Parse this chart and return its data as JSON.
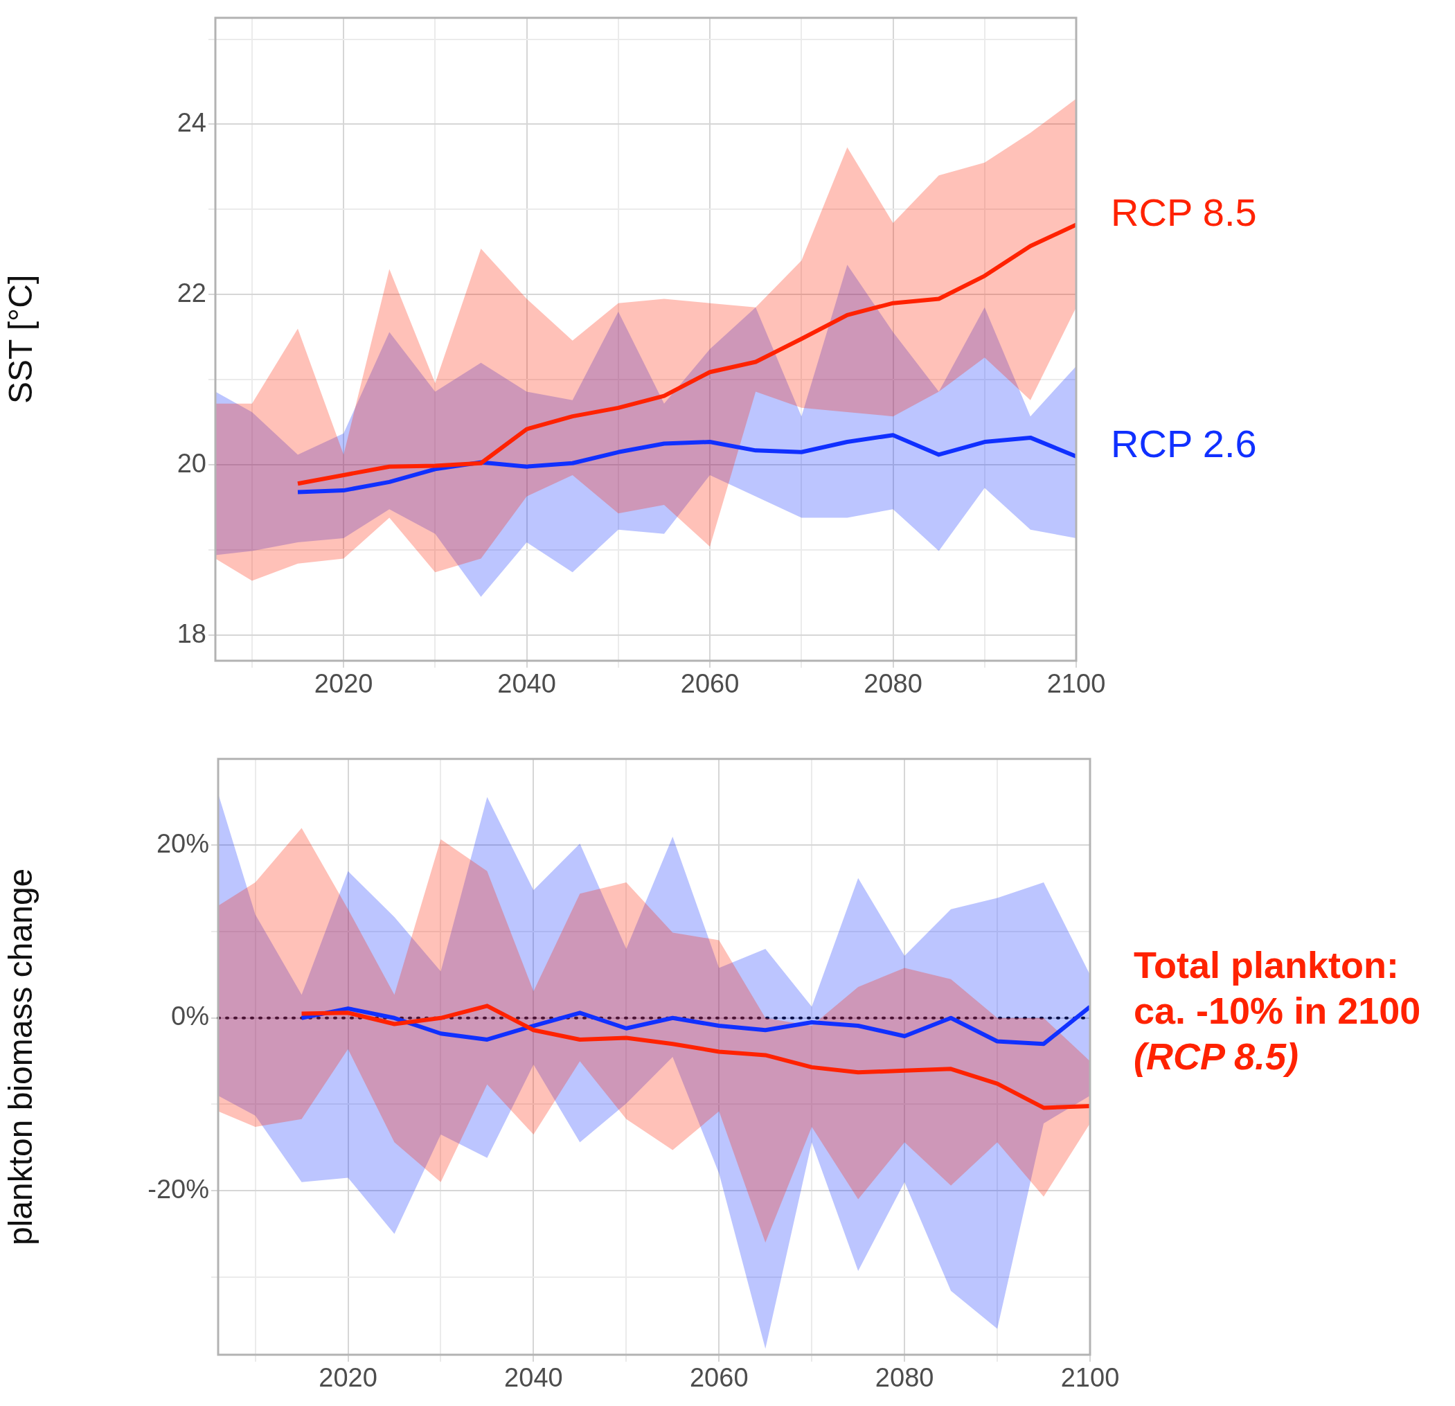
{
  "chart_data": [
    {
      "type": "line",
      "ylabel": "SST [°C]",
      "x": [
        2006,
        2010,
        2015,
        2020,
        2025,
        2030,
        2035,
        2040,
        2045,
        2050,
        2055,
        2060,
        2065,
        2070,
        2075,
        2080,
        2085,
        2090,
        2095,
        2100
      ],
      "xlim": [
        2006,
        2100
      ],
      "xticks": [
        {
          "value": 2010,
          "label": null
        },
        2020,
        {
          "value": 2030,
          "label": null
        },
        2040,
        {
          "value": 2050,
          "label": null
        },
        2060,
        {
          "value": 2070,
          "label": null
        },
        2080,
        {
          "value": 2090,
          "label": null
        },
        2100
      ],
      "ylim": [
        17.7,
        25.25
      ],
      "yticks": [
        18,
        {
          "value": 19,
          "label": null
        },
        20,
        {
          "value": 21,
          "label": null
        },
        22,
        {
          "value": 23,
          "label": null
        },
        24,
        {
          "value": 25,
          "label": null
        }
      ],
      "grid": true,
      "series": [
        {
          "name": "RCP 8.5",
          "color": "#ff2200",
          "values": [
            null,
            null,
            19.78,
            19.88,
            19.98,
            19.99,
            20.02,
            20.42,
            20.57,
            20.67,
            20.81,
            21.09,
            21.21,
            21.48,
            21.76,
            21.9,
            21.95,
            22.22,
            22.57,
            22.82
          ],
          "lower": [
            18.9,
            18.64,
            18.84,
            18.9,
            19.38,
            18.74,
            18.9,
            19.63,
            19.88,
            19.43,
            19.53,
            19.04,
            20.86,
            20.67,
            20.62,
            20.57,
            20.86,
            21.26,
            20.76,
            21.85
          ],
          "upper": [
            20.72,
            20.72,
            21.6,
            20.12,
            22.3,
            20.96,
            22.54,
            21.95,
            21.46,
            21.9,
            21.95,
            21.9,
            21.85,
            22.4,
            23.73,
            22.84,
            23.4,
            23.55,
            23.9,
            24.3
          ]
        },
        {
          "name": "RCP 2.6",
          "color": "#1030ff",
          "values": [
            null,
            null,
            19.68,
            19.7,
            19.8,
            19.95,
            20.03,
            19.98,
            20.02,
            20.15,
            20.25,
            20.27,
            20.17,
            20.15,
            20.27,
            20.35,
            20.12,
            20.27,
            20.32,
            20.1
          ],
          "lower": [
            18.94,
            18.99,
            19.09,
            19.14,
            19.48,
            19.19,
            18.45,
            19.09,
            18.74,
            19.24,
            19.19,
            19.88,
            19.63,
            19.38,
            19.38,
            19.48,
            18.99,
            19.73,
            19.24,
            19.14
          ],
          "upper": [
            20.86,
            20.62,
            20.12,
            20.37,
            21.56,
            20.86,
            21.2,
            20.86,
            20.76,
            21.8,
            20.72,
            21.36,
            21.85,
            20.57,
            22.35,
            21.56,
            20.86,
            21.85,
            20.57,
            21.16
          ]
        }
      ]
    },
    {
      "type": "line",
      "ylabel": "plankton biomass change",
      "x": [
        2006,
        2010,
        2015,
        2020,
        2025,
        2030,
        2035,
        2040,
        2045,
        2050,
        2055,
        2060,
        2065,
        2070,
        2075,
        2080,
        2085,
        2090,
        2095,
        2100
      ],
      "xlim": [
        2006,
        2100
      ],
      "xticks": [
        {
          "value": 2010,
          "label": null
        },
        2020,
        {
          "value": 2030,
          "label": null
        },
        2040,
        {
          "value": 2050,
          "label": null
        },
        2060,
        {
          "value": 2070,
          "label": null
        },
        2080,
        {
          "value": 2090,
          "label": null
        },
        2100
      ],
      "ylim": [
        -39,
        30
      ],
      "yticks": [
        {
          "value": -30,
          "label": null
        },
        {
          "value": -20,
          "label": "-20%"
        },
        {
          "value": -10,
          "label": null
        },
        {
          "value": 0,
          "label": "0%"
        },
        {
          "value": 10,
          "label": null
        },
        {
          "value": 20,
          "label": "20%"
        }
      ],
      "grid": true,
      "ref_lines": [
        {
          "axis": "y",
          "value": 0,
          "color": "#000000",
          "line_style": "dotted"
        }
      ],
      "annotations": [
        "Total plankton: ca. -10% in 2100",
        "(RCP 8.5)"
      ],
      "series": [
        {
          "color": "#ff2200",
          "values": [
            null,
            null,
            0.5,
            0.6,
            -0.7,
            0,
            1.4,
            -1.4,
            -2.5,
            -2.3,
            -3,
            -3.9,
            -4.3,
            -5.7,
            -6.3,
            -6.1,
            -5.9,
            -7.6,
            -10.4,
            -10.2
          ],
          "lower": [
            -10.8,
            -12.6,
            -11.7,
            -3.6,
            -14.4,
            -19,
            -7.7,
            -13.5,
            -5,
            -11.7,
            -15.3,
            -10.8,
            -26,
            -12.6,
            -21,
            -14.4,
            -19.4,
            -14.4,
            -20.7,
            -12.2
          ],
          "upper": [
            13,
            15.7,
            22,
            12.6,
            2.7,
            20.7,
            17,
            3.1,
            14.4,
            15.7,
            9.9,
            9,
            0,
            -0.9,
            3.6,
            5.8,
            4.5,
            0,
            0,
            -5
          ]
        },
        {
          "color": "#1030ff",
          "values": [
            null,
            null,
            0,
            1.1,
            0,
            -1.8,
            -2.5,
            -0.9,
            0.6,
            -1.2,
            0,
            -0.9,
            -1.4,
            -0.5,
            -0.9,
            -2.1,
            0,
            -2.7,
            -3,
            1.3
          ],
          "lower": [
            -9,
            -11.3,
            -19,
            -18.5,
            -25,
            -13.5,
            -16.2,
            -5.4,
            -14.4,
            -9.9,
            -4.5,
            -18,
            -38.3,
            -14.4,
            -29.3,
            -19,
            -31.6,
            -36,
            -12.2,
            -9
          ],
          "upper": [
            26,
            12,
            2.7,
            17,
            11.7,
            5.4,
            25.6,
            14.8,
            20.2,
            8,
            21,
            5.8,
            8,
            1.3,
            16.2,
            7.2,
            12.6,
            13.9,
            15.7,
            5
          ]
        }
      ]
    }
  ]
}
